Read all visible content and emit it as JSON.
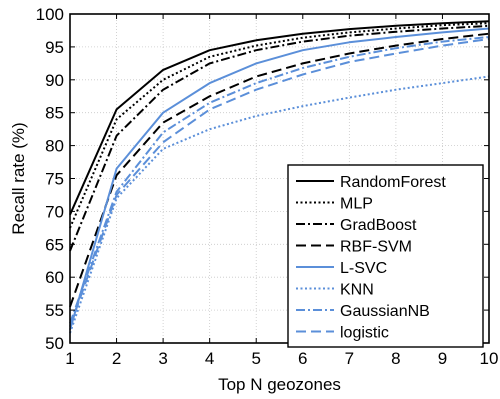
{
  "chart_data": {
    "type": "line",
    "title": "",
    "xlabel": "Top N geozones",
    "ylabel": "Recall rate (%)",
    "x": [
      1,
      2,
      3,
      4,
      5,
      6,
      7,
      8,
      9,
      10
    ],
    "xlim": [
      1,
      10
    ],
    "ylim": [
      50,
      100
    ],
    "xticks": [
      "1",
      "2",
      "3",
      "4",
      "5",
      "6",
      "7",
      "8",
      "9",
      "10"
    ],
    "yticks": [
      "50",
      "55",
      "60",
      "65",
      "70",
      "75",
      "80",
      "85",
      "90",
      "95",
      "100"
    ],
    "grid": true,
    "legend_position": "bottom-right",
    "series": [
      {
        "name": "RandomForest",
        "color": "#000000",
        "dash": "solid",
        "values": [
          69.5,
          85.5,
          91.5,
          94.5,
          96.0,
          97.0,
          97.7,
          98.2,
          98.6,
          98.9
        ]
      },
      {
        "name": "MLP",
        "color": "#000000",
        "dash": "dotted",
        "values": [
          67.5,
          84.0,
          90.0,
          93.5,
          95.2,
          96.4,
          97.2,
          97.8,
          98.3,
          98.6
        ]
      },
      {
        "name": "GradBoost",
        "color": "#000000",
        "dash": "dashdot",
        "values": [
          64.0,
          81.5,
          88.5,
          92.5,
          94.5,
          95.8,
          96.7,
          97.3,
          97.8,
          98.2
        ]
      },
      {
        "name": "RBF-SVM",
        "color": "#000000",
        "dash": "dashed",
        "values": [
          55.5,
          75.5,
          83.5,
          87.5,
          90.5,
          92.5,
          94.0,
          95.2,
          96.2,
          97.0
        ]
      },
      {
        "name": "L-SVC",
        "color": "#5b8fd9",
        "dash": "solid",
        "values": [
          52.0,
          76.5,
          85.0,
          89.5,
          92.5,
          94.5,
          95.7,
          96.5,
          97.2,
          97.8
        ]
      },
      {
        "name": "KNN",
        "color": "#5b8fd9",
        "dash": "dotted",
        "values": [
          51.5,
          72.0,
          79.5,
          82.5,
          84.5,
          86.0,
          87.3,
          88.5,
          89.5,
          90.5
        ]
      },
      {
        "name": "GaussianNB",
        "color": "#5b8fd9",
        "dash": "dashdot",
        "values": [
          53.0,
          73.0,
          82.0,
          86.5,
          89.5,
          91.8,
          93.5,
          94.8,
          95.8,
          96.5
        ]
      },
      {
        "name": "logistic",
        "color": "#5b8fd9",
        "dash": "dashed",
        "values": [
          52.5,
          72.5,
          80.5,
          85.5,
          88.5,
          90.8,
          92.7,
          94.0,
          95.2,
          96.2
        ]
      }
    ]
  }
}
